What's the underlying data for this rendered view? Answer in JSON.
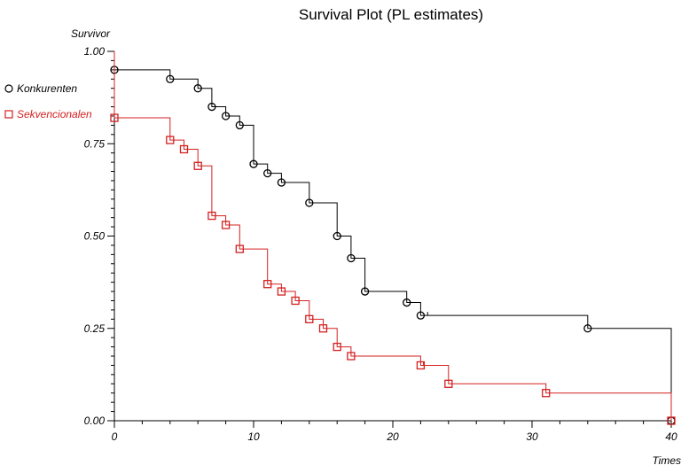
{
  "chart_data": {
    "type": "line",
    "title": "Survival Plot (PL estimates)",
    "xlabel": "Times",
    "ylabel": "Survivor",
    "xlim": [
      0,
      40
    ],
    "ylim": [
      0,
      1
    ],
    "x_ticks": [
      "0",
      "10",
      "20",
      "30",
      "40"
    ],
    "y_ticks": [
      "0.00",
      "0.25",
      "0.50",
      "0.75",
      "1.00"
    ],
    "grid": false,
    "legend_position": "left",
    "series": [
      {
        "name": "Konkurenten",
        "color": "#000000",
        "marker": "circle",
        "steps": [
          [
            0,
            0.95
          ],
          [
            4,
            0.925
          ],
          [
            6,
            0.9
          ],
          [
            7,
            0.85
          ],
          [
            8,
            0.825
          ],
          [
            9,
            0.8
          ],
          [
            10,
            0.695
          ],
          [
            11,
            0.67
          ],
          [
            12,
            0.645
          ],
          [
            14,
            0.59
          ],
          [
            16,
            0.5
          ],
          [
            17,
            0.44
          ],
          [
            18,
            0.35
          ],
          [
            21,
            0.32
          ],
          [
            22,
            0.285
          ],
          [
            34,
            0.25
          ],
          [
            40,
            0.0
          ]
        ],
        "markers": [
          [
            0,
            0.95
          ],
          [
            4,
            0.925
          ],
          [
            6,
            0.9
          ],
          [
            7,
            0.85
          ],
          [
            8,
            0.825
          ],
          [
            9,
            0.8
          ],
          [
            10,
            0.695
          ],
          [
            11,
            0.67
          ],
          [
            12,
            0.645
          ],
          [
            14,
            0.59
          ],
          [
            16,
            0.5
          ],
          [
            17,
            0.44
          ],
          [
            18,
            0.35
          ],
          [
            21,
            0.32
          ],
          [
            22,
            0.285
          ],
          [
            34,
            0.25
          ],
          [
            40,
            0.0
          ]
        ],
        "censor_ticks": [
          22.5
        ]
      },
      {
        "name": "Sekvencionalen",
        "color": "#d42020",
        "marker": "square",
        "steps": [
          [
            0,
            0.82
          ],
          [
            4,
            0.76
          ],
          [
            5,
            0.735
          ],
          [
            6,
            0.69
          ],
          [
            7,
            0.555
          ],
          [
            8,
            0.53
          ],
          [
            9,
            0.465
          ],
          [
            11,
            0.37
          ],
          [
            12,
            0.35
          ],
          [
            13,
            0.325
          ],
          [
            14,
            0.275
          ],
          [
            15,
            0.25
          ],
          [
            16,
            0.2
          ],
          [
            17,
            0.175
          ],
          [
            22,
            0.15
          ],
          [
            24,
            0.1
          ],
          [
            31,
            0.075
          ],
          [
            40,
            0.0
          ]
        ],
        "markers": [
          [
            0,
            0.82
          ],
          [
            4,
            0.76
          ],
          [
            5,
            0.735
          ],
          [
            6,
            0.69
          ],
          [
            7,
            0.555
          ],
          [
            8,
            0.53
          ],
          [
            9,
            0.465
          ],
          [
            11,
            0.37
          ],
          [
            12,
            0.35
          ],
          [
            13,
            0.325
          ],
          [
            14,
            0.275
          ],
          [
            15,
            0.25
          ],
          [
            16,
            0.2
          ],
          [
            17,
            0.175
          ],
          [
            22,
            0.15
          ],
          [
            24,
            0.1
          ],
          [
            31,
            0.075
          ],
          [
            40,
            0.0
          ]
        ],
        "censor_ticks": [
          22.2
        ]
      }
    ]
  }
}
